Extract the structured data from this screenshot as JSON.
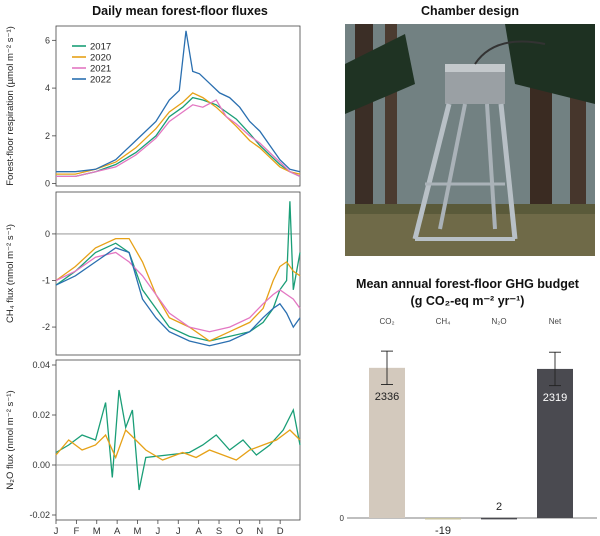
{
  "left_title": "Daily mean forest-floor fluxes",
  "photo_title": "Chamber design",
  "budget_title": "Mean annual forest-floor GHG budget",
  "budget_subtitle": "(g CO₂-eq m⁻² yr⁻¹)",
  "colors": {
    "2017": "#1a9e77",
    "2020": "#e6a117",
    "2021": "#e377c2",
    "2022": "#2a6fb0",
    "bar_co2": "#d3c9bd",
    "bar_net": "#4a4a50"
  },
  "chart_data": [
    {
      "type": "line",
      "ylabel": "Forest-floor respiration (µmol m⁻² s⁻¹)",
      "ylim": [
        -0.1,
        6.6
      ],
      "yticks": [
        0,
        2,
        4,
        6
      ],
      "grid": false,
      "legend": "top-left",
      "series": [
        {
          "name": "2017",
          "x": [
            1,
            30,
            60,
            90,
            120,
            150,
            170,
            190,
            205,
            220,
            240,
            255,
            270,
            290,
            305,
            320,
            335,
            350,
            365
          ],
          "y": [
            0.3,
            0.3,
            0.5,
            0.8,
            1.3,
            2.0,
            2.8,
            3.2,
            3.6,
            3.5,
            3.3,
            3.0,
            2.7,
            2.1,
            1.6,
            1.2,
            0.8,
            0.5,
            0.3
          ]
        },
        {
          "name": "2020",
          "x": [
            1,
            30,
            60,
            90,
            120,
            150,
            170,
            190,
            205,
            220,
            240,
            255,
            270,
            290,
            305,
            320,
            335,
            350,
            365
          ],
          "y": [
            0.4,
            0.4,
            0.6,
            0.9,
            1.5,
            2.3,
            3.0,
            3.4,
            3.8,
            3.6,
            3.2,
            2.8,
            2.4,
            1.8,
            1.5,
            1.1,
            0.7,
            0.5,
            0.4
          ]
        },
        {
          "name": "2021",
          "x": [
            1,
            30,
            60,
            90,
            120,
            150,
            170,
            190,
            205,
            220,
            240,
            255,
            270,
            290,
            305,
            320,
            335,
            350,
            365
          ],
          "y": [
            0.3,
            0.3,
            0.5,
            0.7,
            1.2,
            1.9,
            2.6,
            3.0,
            3.3,
            3.2,
            3.5,
            2.8,
            2.5,
            2.0,
            1.7,
            1.3,
            0.9,
            0.5,
            0.3
          ]
        },
        {
          "name": "2022",
          "x": [
            1,
            30,
            60,
            90,
            120,
            150,
            170,
            185,
            195,
            205,
            215,
            230,
            245,
            260,
            275,
            290,
            305,
            320,
            335,
            350,
            365
          ],
          "y": [
            0.5,
            0.5,
            0.6,
            1.0,
            1.8,
            2.6,
            3.5,
            3.9,
            6.4,
            4.7,
            4.6,
            4.2,
            3.8,
            3.6,
            3.2,
            2.6,
            2.2,
            1.6,
            1.0,
            0.6,
            0.5
          ]
        }
      ]
    },
    {
      "type": "line",
      "ylabel": "CH₄ flux (nmol m⁻² s⁻¹)",
      "ylim": [
        -2.6,
        0.9
      ],
      "yticks": [
        -2,
        -1,
        0
      ],
      "hline": 0,
      "grid": false,
      "series": [
        {
          "name": "2017",
          "x": [
            1,
            30,
            60,
            90,
            110,
            130,
            150,
            170,
            200,
            230,
            260,
            290,
            310,
            325,
            335,
            345,
            350,
            355,
            365
          ],
          "y": [
            -1.1,
            -0.8,
            -0.4,
            -0.2,
            -0.4,
            -1.2,
            -1.6,
            -2.0,
            -2.2,
            -2.3,
            -2.2,
            -2.1,
            -1.9,
            -1.6,
            -1.2,
            -1.0,
            0.7,
            -1.2,
            -0.4
          ]
        },
        {
          "name": "2020",
          "x": [
            1,
            30,
            60,
            90,
            110,
            130,
            150,
            170,
            200,
            230,
            260,
            290,
            310,
            325,
            335,
            345,
            355,
            365
          ],
          "y": [
            -1.0,
            -0.7,
            -0.3,
            -0.1,
            -0.1,
            -0.6,
            -1.3,
            -1.8,
            -2.0,
            -2.3,
            -2.1,
            -1.9,
            -1.6,
            -1.0,
            -0.7,
            -0.6,
            -0.8,
            -0.9
          ]
        },
        {
          "name": "2021",
          "x": [
            1,
            30,
            60,
            90,
            110,
            130,
            150,
            170,
            200,
            230,
            260,
            290,
            310,
            325,
            335,
            345,
            355,
            365
          ],
          "y": [
            -1.0,
            -0.8,
            -0.5,
            -0.4,
            -0.6,
            -0.9,
            -1.3,
            -1.7,
            -2.0,
            -2.1,
            -2.0,
            -1.8,
            -1.5,
            -1.3,
            -1.2,
            -1.3,
            -1.4,
            -1.6
          ]
        },
        {
          "name": "2022",
          "x": [
            1,
            30,
            60,
            90,
            110,
            130,
            150,
            170,
            200,
            230,
            260,
            290,
            310,
            325,
            335,
            345,
            355,
            365
          ],
          "y": [
            -1.1,
            -0.9,
            -0.6,
            -0.3,
            -0.4,
            -1.4,
            -1.8,
            -2.1,
            -2.3,
            -2.4,
            -2.3,
            -2.1,
            -1.8,
            -1.6,
            -1.5,
            -1.7,
            -2.0,
            -1.8
          ]
        }
      ]
    },
    {
      "type": "line",
      "ylabel": "N₂O flux (nmol m⁻² s⁻¹)",
      "xlabel": "",
      "ylim": [
        -0.022,
        0.042
      ],
      "yticks": [
        -0.02,
        0.0,
        0.02,
        0.04
      ],
      "ytick_labels": [
        "-0.02",
        "0.00",
        "0.02",
        "0.04"
      ],
      "hline": 0,
      "x_tick_labels": [
        "J",
        "F",
        "M",
        "A",
        "M",
        "J",
        "J",
        "A",
        "S",
        "O",
        "N",
        "D"
      ],
      "grid": false,
      "series": [
        {
          "name": "2017",
          "x": [
            1,
            20,
            40,
            60,
            75,
            85,
            95,
            105,
            115,
            125,
            135,
            200,
            220,
            240,
            260,
            280,
            300,
            320,
            340,
            355,
            365
          ],
          "y": [
            0.005,
            0.008,
            0.012,
            0.01,
            0.025,
            -0.005,
            0.03,
            0.015,
            0.022,
            -0.01,
            0.003,
            0.005,
            0.008,
            0.012,
            0.006,
            0.01,
            0.004,
            0.008,
            0.014,
            0.022,
            0.008
          ]
        },
        {
          "name": "2020",
          "x": [
            1,
            20,
            40,
            60,
            75,
            90,
            105,
            120,
            135,
            160,
            190,
            210,
            230,
            250,
            270,
            290,
            310,
            330,
            350,
            365
          ],
          "y": [
            0.004,
            0.01,
            0.006,
            0.008,
            0.012,
            0.003,
            0.014,
            0.01,
            0.006,
            0.002,
            0.005,
            0.003,
            0.006,
            0.004,
            0.002,
            0.006,
            0.008,
            0.01,
            0.014,
            0.01
          ]
        }
      ]
    },
    {
      "type": "bar",
      "categories": [
        "CO₂",
        "CH₄",
        "N₂O",
        "Net"
      ],
      "values": [
        2336,
        -19,
        2,
        2319
      ],
      "value_labels": [
        "2336",
        "-19",
        "2",
        "2319"
      ],
      "errors": [
        260,
        null,
        null,
        260
      ],
      "ylim": [
        -60,
        2800
      ],
      "yticks": [
        0
      ],
      "grid": false
    }
  ]
}
